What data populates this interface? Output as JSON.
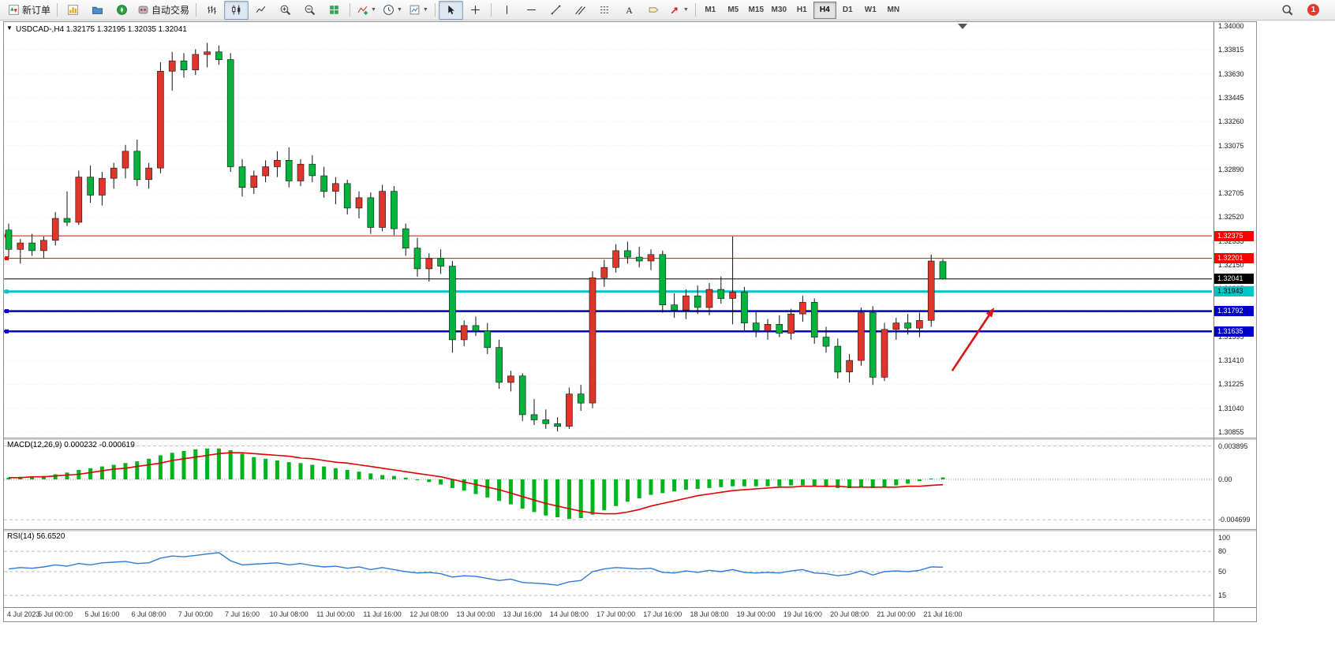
{
  "toolbar": {
    "groups": [
      {
        "buttons": [
          {
            "name": "new-order",
            "label": "新订单",
            "icon": "new-order-icon"
          }
        ]
      },
      {
        "buttons": [
          {
            "name": "new-chart",
            "icon": "new-chart-icon"
          },
          {
            "name": "profiles",
            "icon": "profiles-icon"
          },
          {
            "name": "navigator",
            "icon": "navigator-icon"
          },
          {
            "name": "auto-trading",
            "label": "自动交易",
            "icon": "auto-trading-icon"
          }
        ]
      },
      {
        "buttons": [
          {
            "name": "bar-chart-mode",
            "icon": "bar-chart-icon"
          },
          {
            "name": "candlestick-mode",
            "icon": "candlestick-icon",
            "active": true
          },
          {
            "name": "line-chart-mode",
            "icon": "line-chart-icon"
          },
          {
            "name": "zoom-in",
            "icon": "zoom-in-icon"
          },
          {
            "name": "zoom-out",
            "icon": "zoom-out-icon"
          },
          {
            "name": "tile-windows",
            "icon": "tile-windows-icon"
          }
        ]
      },
      {
        "buttons": [
          {
            "name": "indicators",
            "icon": "indicators-icon",
            "dropdown": true
          },
          {
            "name": "periods",
            "icon": "clock-icon",
            "dropdown": true
          },
          {
            "name": "templates",
            "icon": "template-icon",
            "dropdown": true
          }
        ]
      },
      {
        "buttons": [
          {
            "name": "cursor",
            "icon": "cursor-icon",
            "active": true
          },
          {
            "name": "crosshair",
            "icon": "crosshair-icon"
          }
        ]
      },
      {
        "buttons": [
          {
            "name": "vertical-line",
            "icon": "vertical-line-icon"
          },
          {
            "name": "horizontal-line",
            "icon": "horizontal-line-icon"
          },
          {
            "name": "trendline",
            "icon": "trendline-icon"
          },
          {
            "name": "equidistant-channel",
            "icon": "channel-icon"
          },
          {
            "name": "fibonacci",
            "icon": "fibonacci-icon"
          },
          {
            "name": "text",
            "icon": "text-icon"
          },
          {
            "name": "text-label",
            "icon": "label-icon"
          },
          {
            "name": "arrows",
            "icon": "shapes-icon",
            "dropdown": true
          }
        ]
      }
    ],
    "timeframes": [
      "M1",
      "M5",
      "M15",
      "M30",
      "H1",
      "H4",
      "D1",
      "W1",
      "MN"
    ],
    "active_timeframe": "H4",
    "notification_count": "1"
  },
  "window": {
    "symbol_info": "USDCAD-,H4 1.32175 1.32195 1.32035 1.32041",
    "quick_trade_glyph": "▼",
    "price_scale_labels": [
      "1.34000",
      "1.33815",
      "1.33630",
      "1.33445",
      "1.33260",
      "1.33075",
      "1.32890",
      "1.32705",
      "1.32520",
      "1.32335",
      "1.32150",
      "1.31965",
      "1.31780",
      "1.31595",
      "1.31410",
      "1.31225",
      "1.31040",
      "1.30855"
    ],
    "hlines": [
      {
        "label": "1.32375",
        "price": 1.32375,
        "color": "#fe0000",
        "text": "#ffffff",
        "width": 1,
        "anchor": true
      },
      {
        "label": "1.32201",
        "price": 1.32201,
        "color": "#fe0000",
        "text": "#ffffff",
        "width": 1,
        "anchor": true
      },
      {
        "label": "1.32041",
        "price": 1.32041,
        "color": "#000000",
        "text": "#ffffff",
        "width": 1,
        "anchor": false
      },
      {
        "label": "1.31943",
        "price": 1.31943,
        "color": "#00c5c5",
        "text": "#000000",
        "width": 3,
        "anchor": true
      },
      {
        "label": "1.31792",
        "price": 1.31792,
        "color": "#0000c8",
        "text": "#ffffff",
        "width": 2.5,
        "anchor": true
      },
      {
        "label": "1.31635",
        "price": 1.31635,
        "color": "#0000c8",
        "text": "#ffffff",
        "width": 2.5,
        "anchor": true
      }
    ],
    "macd": {
      "label": "MACD(12,26,9) 0.000232 -0.000619",
      "scale": [
        {
          "label": "0.003895",
          "value": 0.003895
        },
        {
          "label": "0.00",
          "value": 0
        },
        {
          "label": "-0.004699",
          "value": -0.004699
        }
      ]
    },
    "rsi": {
      "label": "RSI(14) 56.6520",
      "scale": [
        {
          "label": "100",
          "value": 100
        },
        {
          "label": "80",
          "value": 80
        },
        {
          "label": "50",
          "value": 50
        },
        {
          "label": "15",
          "value": 15
        }
      ]
    }
  },
  "chart_data": [
    {
      "type": "candlestick",
      "symbol": "USDCAD-",
      "timeframe": "H4",
      "up_color": "#e0352b",
      "down_color": "#00b33c",
      "visible_price_range": [
        1.30855,
        1.34
      ],
      "label_every_n_bars": 4,
      "x_labels": [
        "4 Jul 2023",
        "5 Jul 00:00",
        "5 Jul 16:00",
        "6 Jul 08:00",
        "7 Jul 00:00",
        "7 Jul 16:00",
        "10 Jul 08:00",
        "11 Jul 00:00",
        "11 Jul 16:00",
        "12 Jul 08:00",
        "13 Jul 00:00",
        "13 Jul 16:00",
        "14 Jul 08:00",
        "17 Jul 00:00",
        "17 Jul 16:00",
        "18 Jul 08:00",
        "19 Jul 00:00",
        "19 Jul 16:00",
        "20 Jul 08:00",
        "21 Jul 00:00",
        "21 Jul 16:00"
      ],
      "ohlc": [
        [
          1.3242,
          1.3247,
          1.3221,
          1.3227
        ],
        [
          1.3227,
          1.3235,
          1.3216,
          1.3232
        ],
        [
          1.3232,
          1.3239,
          1.3222,
          1.3226
        ],
        [
          1.3226,
          1.3237,
          1.322,
          1.3234
        ],
        [
          1.3234,
          1.3256,
          1.323,
          1.3251
        ],
        [
          1.3251,
          1.3272,
          1.3245,
          1.3248
        ],
        [
          1.3248,
          1.3288,
          1.3246,
          1.3283
        ],
        [
          1.3283,
          1.3292,
          1.3263,
          1.3269
        ],
        [
          1.3269,
          1.3287,
          1.3261,
          1.3282
        ],
        [
          1.3282,
          1.3294,
          1.3274,
          1.329
        ],
        [
          1.329,
          1.3308,
          1.3282,
          1.3303
        ],
        [
          1.3303,
          1.3312,
          1.3276,
          1.3281
        ],
        [
          1.3281,
          1.3294,
          1.3274,
          1.329
        ],
        [
          1.329,
          1.3372,
          1.3286,
          1.3365
        ],
        [
          1.3365,
          1.338,
          1.335,
          1.3373
        ],
        [
          1.3373,
          1.3379,
          1.336,
          1.3366
        ],
        [
          1.3366,
          1.3382,
          1.3362,
          1.3378
        ],
        [
          1.3378,
          1.3387,
          1.3368,
          1.338
        ],
        [
          1.338,
          1.3385,
          1.337,
          1.3374
        ],
        [
          1.3374,
          1.3379,
          1.3287,
          1.3291
        ],
        [
          1.3291,
          1.3297,
          1.3268,
          1.3275
        ],
        [
          1.3275,
          1.3288,
          1.327,
          1.3284
        ],
        [
          1.3284,
          1.3296,
          1.3279,
          1.3291
        ],
        [
          1.3291,
          1.3303,
          1.3283,
          1.3296
        ],
        [
          1.3296,
          1.3306,
          1.3275,
          1.328
        ],
        [
          1.328,
          1.3297,
          1.3276,
          1.3293
        ],
        [
          1.3293,
          1.33,
          1.3279,
          1.3284
        ],
        [
          1.3284,
          1.3291,
          1.3267,
          1.3272
        ],
        [
          1.3272,
          1.3283,
          1.3262,
          1.3278
        ],
        [
          1.3278,
          1.3281,
          1.3254,
          1.3259
        ],
        [
          1.3259,
          1.3272,
          1.3251,
          1.3267
        ],
        [
          1.3267,
          1.3271,
          1.3239,
          1.3244
        ],
        [
          1.3244,
          1.3277,
          1.3241,
          1.3272
        ],
        [
          1.3272,
          1.3276,
          1.3238,
          1.3243
        ],
        [
          1.3243,
          1.3247,
          1.3222,
          1.3228
        ],
        [
          1.3228,
          1.3236,
          1.3206,
          1.3212
        ],
        [
          1.3212,
          1.3224,
          1.3202,
          1.322
        ],
        [
          1.322,
          1.3227,
          1.3208,
          1.3214
        ],
        [
          1.3214,
          1.3218,
          1.3147,
          1.3157
        ],
        [
          1.3157,
          1.3172,
          1.3152,
          1.3168
        ],
        [
          1.3168,
          1.3175,
          1.316,
          1.3164
        ],
        [
          1.3164,
          1.317,
          1.3146,
          1.3151
        ],
        [
          1.3151,
          1.3157,
          1.3119,
          1.3124
        ],
        [
          1.3124,
          1.3133,
          1.3117,
          1.3129
        ],
        [
          1.3129,
          1.3131,
          1.3094,
          1.3099
        ],
        [
          1.3099,
          1.3111,
          1.3091,
          1.3095
        ],
        [
          1.3095,
          1.3103,
          1.3088,
          1.3092
        ],
        [
          1.3092,
          1.3097,
          1.3086,
          1.309
        ],
        [
          1.309,
          1.312,
          1.3088,
          1.3115
        ],
        [
          1.3115,
          1.3122,
          1.3102,
          1.3108
        ],
        [
          1.3108,
          1.321,
          1.3104,
          1.3205
        ],
        [
          1.3205,
          1.3219,
          1.3198,
          1.3213
        ],
        [
          1.3213,
          1.3231,
          1.3209,
          1.3226
        ],
        [
          1.3226,
          1.3233,
          1.3216,
          1.3221
        ],
        [
          1.3221,
          1.3229,
          1.3213,
          1.3218
        ],
        [
          1.3218,
          1.3227,
          1.3211,
          1.3223
        ],
        [
          1.3223,
          1.3226,
          1.3178,
          1.3184
        ],
        [
          1.3184,
          1.3193,
          1.3174,
          1.318
        ],
        [
          1.318,
          1.3196,
          1.3173,
          1.3191
        ],
        [
          1.3191,
          1.3199,
          1.3177,
          1.3182
        ],
        [
          1.3182,
          1.3201,
          1.3176,
          1.3196
        ],
        [
          1.3196,
          1.3206,
          1.3185,
          1.3189
        ],
        [
          1.3189,
          1.3237,
          1.3169,
          1.3194
        ],
        [
          1.3194,
          1.3198,
          1.3164,
          1.317
        ],
        [
          1.317,
          1.3179,
          1.3159,
          1.3164
        ],
        [
          1.3164,
          1.3173,
          1.3157,
          1.3169
        ],
        [
          1.3169,
          1.3176,
          1.3159,
          1.3162
        ],
        [
          1.3162,
          1.3181,
          1.3157,
          1.3177
        ],
        [
          1.3177,
          1.3191,
          1.3171,
          1.3186
        ],
        [
          1.3186,
          1.3189,
          1.3154,
          1.3159
        ],
        [
          1.3159,
          1.3167,
          1.3147,
          1.3152
        ],
        [
          1.3152,
          1.3158,
          1.3127,
          1.3132
        ],
        [
          1.3132,
          1.3146,
          1.3124,
          1.3141
        ],
        [
          1.3141,
          1.3182,
          1.3137,
          1.3178
        ],
        [
          1.3178,
          1.3183,
          1.3122,
          1.3128
        ],
        [
          1.3128,
          1.317,
          1.3125,
          1.3165
        ],
        [
          1.3165,
          1.3174,
          1.3157,
          1.317
        ],
        [
          1.317,
          1.3177,
          1.3161,
          1.3166
        ],
        [
          1.3166,
          1.3178,
          1.3159,
          1.3172
        ],
        [
          1.3172,
          1.3223,
          1.3167,
          1.3218
        ],
        [
          1.32175,
          1.32195,
          1.32035,
          1.32041
        ]
      ],
      "arrow_annotation": {
        "from_bar": 80.8,
        "from_price": 1.3133,
        "to_bar": 84.4,
        "to_price": 1.3182,
        "color": "#dd1111"
      }
    },
    {
      "type": "bar",
      "name": "MACD(12,26,9)",
      "current_values": "0.000232 -0.000619",
      "histogram_color": "#00b41e",
      "signal_color": "#e00000",
      "scale_values": [
        0.003895,
        0,
        -0.004699
      ],
      "histogram": [
        0.0002,
        0.0003,
        0.0003,
        0.0004,
        0.0006,
        0.0008,
        0.0011,
        0.0013,
        0.0015,
        0.0017,
        0.0019,
        0.0021,
        0.0024,
        0.0028,
        0.0031,
        0.0033,
        0.0035,
        0.0036,
        0.0036,
        0.0034,
        0.003,
        0.0026,
        0.0024,
        0.0022,
        0.002,
        0.0019,
        0.0017,
        0.0015,
        0.0013,
        0.0011,
        0.0009,
        0.0007,
        0.0005,
        0.0004,
        0.0002,
        0.0,
        -0.0003,
        -0.0006,
        -0.001,
        -0.0013,
        -0.0017,
        -0.0021,
        -0.0025,
        -0.0029,
        -0.0034,
        -0.0038,
        -0.0042,
        -0.0044,
        -0.0046,
        -0.0045,
        -0.0041,
        -0.0036,
        -0.0031,
        -0.0026,
        -0.0022,
        -0.0018,
        -0.0016,
        -0.0014,
        -0.0012,
        -0.0011,
        -0.001,
        -0.0009,
        -0.0008,
        -0.0008,
        -0.0008,
        -0.0008,
        -0.0008,
        -0.0007,
        -0.0007,
        -0.0008,
        -0.0009,
        -0.001,
        -0.001,
        -0.0009,
        -0.001,
        -0.0009,
        -0.0007,
        -0.0005,
        -0.0002,
        0.0001,
        0.000232
      ],
      "signal": [
        0.0002,
        0.0002,
        0.0003,
        0.0003,
        0.0004,
        0.0005,
        0.0006,
        0.0008,
        0.001,
        0.0012,
        0.0013,
        0.0015,
        0.0017,
        0.0019,
        0.0022,
        0.0024,
        0.0026,
        0.0028,
        0.003,
        0.0031,
        0.0031,
        0.003,
        0.0029,
        0.0028,
        0.0027,
        0.0025,
        0.0024,
        0.0022,
        0.002,
        0.0019,
        0.0017,
        0.0015,
        0.0013,
        0.0011,
        0.0009,
        0.0007,
        0.0005,
        0.0003,
        0.0,
        -0.0003,
        -0.0006,
        -0.0009,
        -0.0012,
        -0.0016,
        -0.002,
        -0.0024,
        -0.0028,
        -0.0031,
        -0.0034,
        -0.0037,
        -0.0039,
        -0.004,
        -0.004,
        -0.0038,
        -0.0035,
        -0.0031,
        -0.0028,
        -0.0025,
        -0.0022,
        -0.0019,
        -0.0017,
        -0.0015,
        -0.0013,
        -0.0012,
        -0.0011,
        -0.001,
        -0.0009,
        -0.0009,
        -0.0008,
        -0.0008,
        -0.0008,
        -0.0008,
        -0.0009,
        -0.0009,
        -0.0009,
        -0.0009,
        -0.0009,
        -0.0008,
        -0.0008,
        -0.0007,
        -0.000619
      ]
    },
    {
      "type": "line",
      "name": "RSI(14)",
      "current_value": 56.652,
      "line_color": "#2e7bd6",
      "levels": [
        80,
        50,
        15
      ],
      "range": [
        0,
        100
      ],
      "values": [
        54,
        56,
        55,
        57,
        60,
        58,
        62,
        60,
        63,
        64,
        65,
        62,
        63,
        70,
        73,
        72,
        74,
        76,
        78,
        66,
        60,
        61,
        62,
        63,
        60,
        62,
        59,
        57,
        58,
        55,
        57,
        53,
        56,
        53,
        50,
        48,
        49,
        47,
        42,
        44,
        43,
        40,
        37,
        39,
        34,
        33,
        32,
        30,
        35,
        37,
        50,
        54,
        56,
        55,
        54,
        55,
        49,
        48,
        51,
        49,
        52,
        50,
        53,
        49,
        48,
        49,
        48,
        51,
        53,
        48,
        47,
        44,
        46,
        51,
        45,
        50,
        51,
        50,
        52,
        57,
        56.65
      ]
    }
  ]
}
